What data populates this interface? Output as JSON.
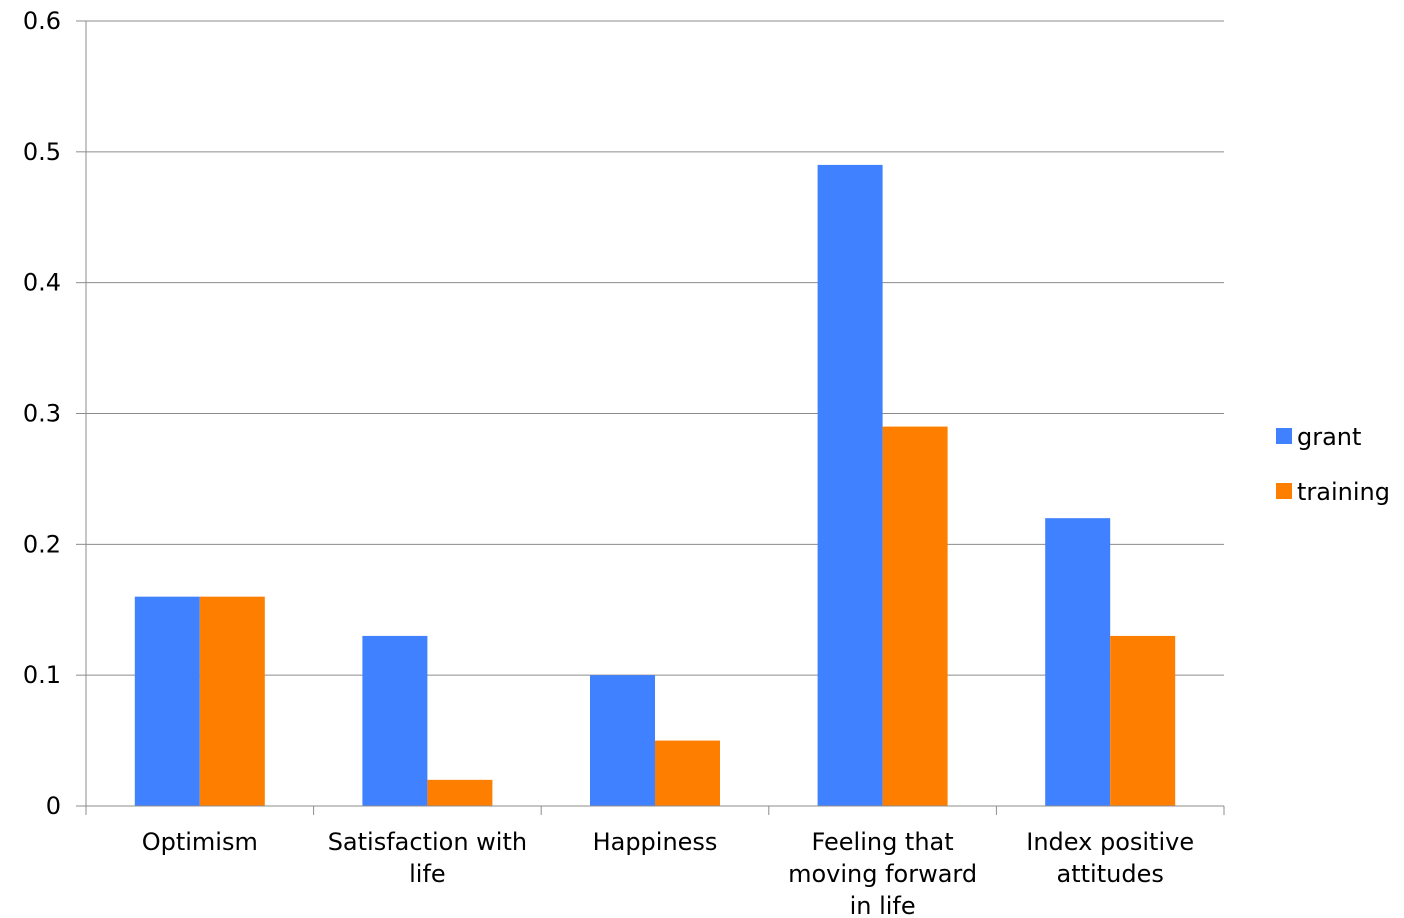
{
  "chart_data": {
    "type": "bar",
    "categories": [
      [
        "Optimism"
      ],
      [
        "Satisfaction with",
        "life"
      ],
      [
        "Happiness"
      ],
      [
        "Feeling that",
        "moving forward",
        "in life"
      ],
      [
        "Index positive",
        "attitudes"
      ]
    ],
    "series": [
      {
        "name": "grant",
        "color": "#3f81fe",
        "values": [
          0.16,
          0.13,
          0.1,
          0.49,
          0.22
        ]
      },
      {
        "name": "training",
        "color": "#fe7f00",
        "values": [
          0.16,
          0.02,
          0.05,
          0.29,
          0.13
        ]
      }
    ],
    "ylim": [
      0,
      0.6
    ],
    "yticks": [
      "0",
      "0.1",
      "0.2",
      "0.3",
      "0.4",
      "0.5",
      "0.6"
    ],
    "grid": true,
    "legend_position": "right"
  }
}
